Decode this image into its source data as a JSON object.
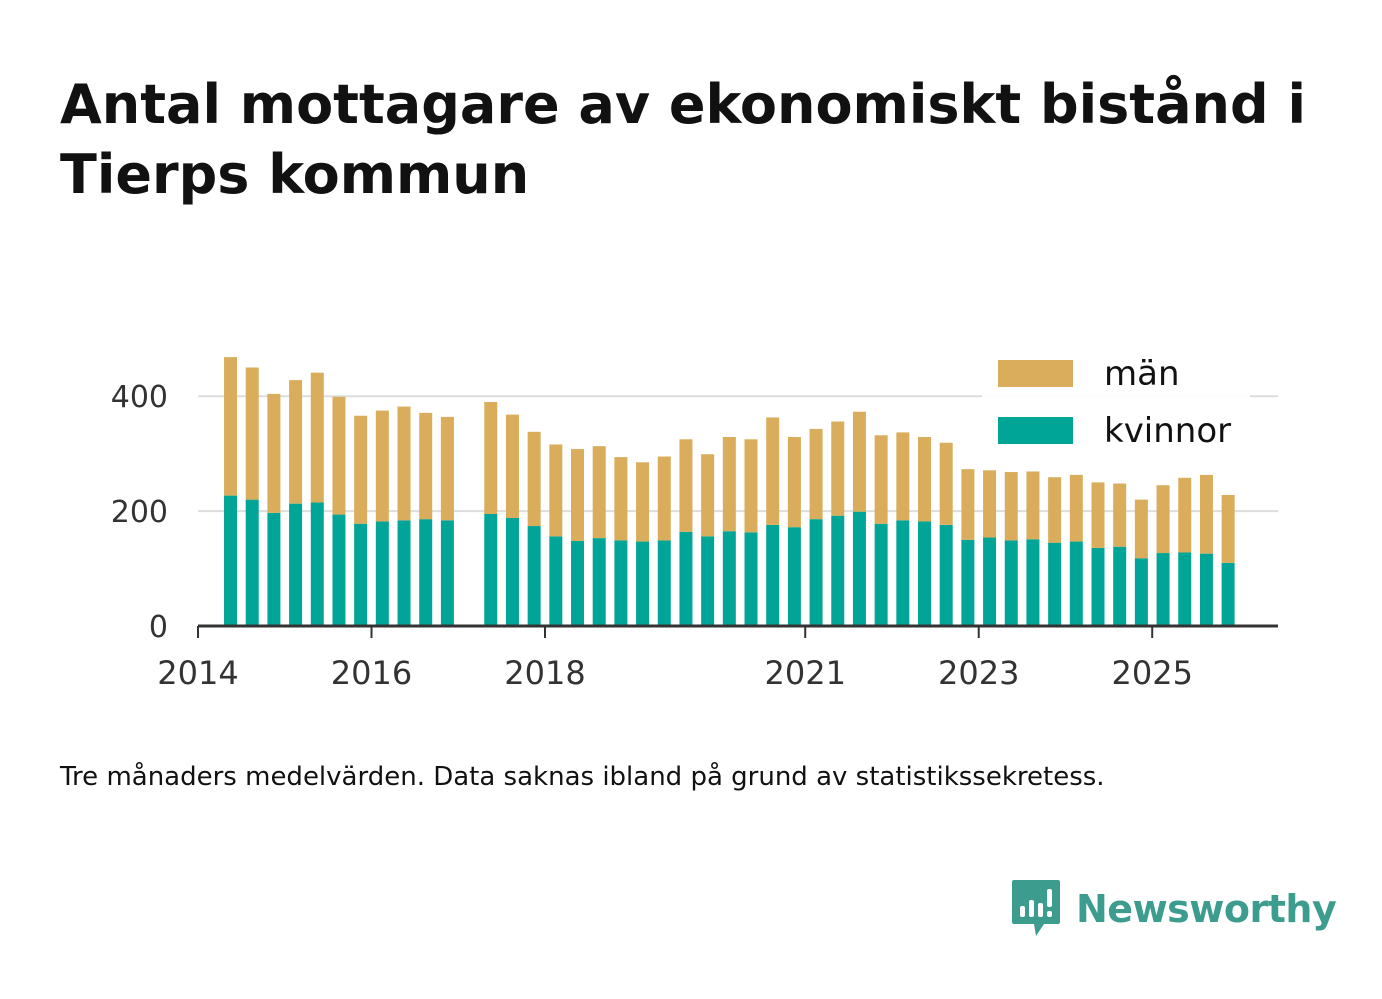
{
  "title": "Antal mottagare av ekonomiskt bistånd i Tierps kommun",
  "note": "Tre månaders medelvärden. Data saknas ibland på grund av statistikssekretess.",
  "brand": {
    "name": "Newsworthy",
    "icon": "newsworthy-logo-icon"
  },
  "colors": {
    "man": "#d9ad5b",
    "kvinnor": "#00a598",
    "grid": "#dddddd",
    "axis": "#333333",
    "brand": "#3c9c8e"
  },
  "chart_data": {
    "type": "bar",
    "stacked": true,
    "title": "Antal mottagare av ekonomiskt bistånd i Tierps kommun",
    "xlabel": "",
    "ylabel": "",
    "ylim": [
      0,
      470
    ],
    "yticks": [
      0,
      200,
      400
    ],
    "xlim": [
      2014.0,
      2026.45
    ],
    "xticks": [
      2014,
      2016,
      2018,
      2021,
      2023,
      2025
    ],
    "legend": [
      "män",
      "kvinnor"
    ],
    "legend_position": "top-right",
    "grid": true,
    "x": [
      2014.375,
      2014.625,
      2014.875,
      2015.125,
      2015.375,
      2015.625,
      2015.875,
      2016.125,
      2016.375,
      2016.625,
      2016.875,
      2017.375,
      2017.625,
      2017.875,
      2018.125,
      2018.375,
      2018.625,
      2018.875,
      2019.125,
      2019.375,
      2019.625,
      2019.875,
      2020.125,
      2020.375,
      2020.625,
      2020.875,
      2021.125,
      2021.375,
      2021.625,
      2021.875,
      2022.125,
      2022.375,
      2022.625,
      2022.875,
      2023.125,
      2023.375,
      2023.625,
      2023.875,
      2024.125,
      2024.375,
      2024.625,
      2024.875,
      2025.125,
      2025.375,
      2025.625,
      2025.875
    ],
    "series": [
      {
        "name": "kvinnor",
        "values": [
          227,
          220,
          197,
          213,
          215,
          194,
          178,
          182,
          184,
          186,
          184,
          195,
          188,
          174,
          156,
          148,
          153,
          149,
          147,
          149,
          164,
          156,
          165,
          163,
          176,
          172,
          186,
          192,
          199,
          178,
          184,
          182,
          176,
          150,
          154,
          149,
          151,
          145,
          147,
          136,
          138,
          118,
          127,
          128,
          126,
          110
        ]
      },
      {
        "name": "män",
        "values": [
          241,
          230,
          207,
          215,
          226,
          205,
          188,
          193,
          198,
          185,
          180,
          195,
          180,
          164,
          160,
          160,
          160,
          145,
          138,
          146,
          161,
          143,
          164,
          162,
          187,
          157,
          157,
          164,
          174,
          154,
          153,
          147,
          143,
          123,
          117,
          119,
          118,
          114,
          116,
          114,
          110,
          102,
          118,
          130,
          137,
          118
        ]
      }
    ]
  }
}
